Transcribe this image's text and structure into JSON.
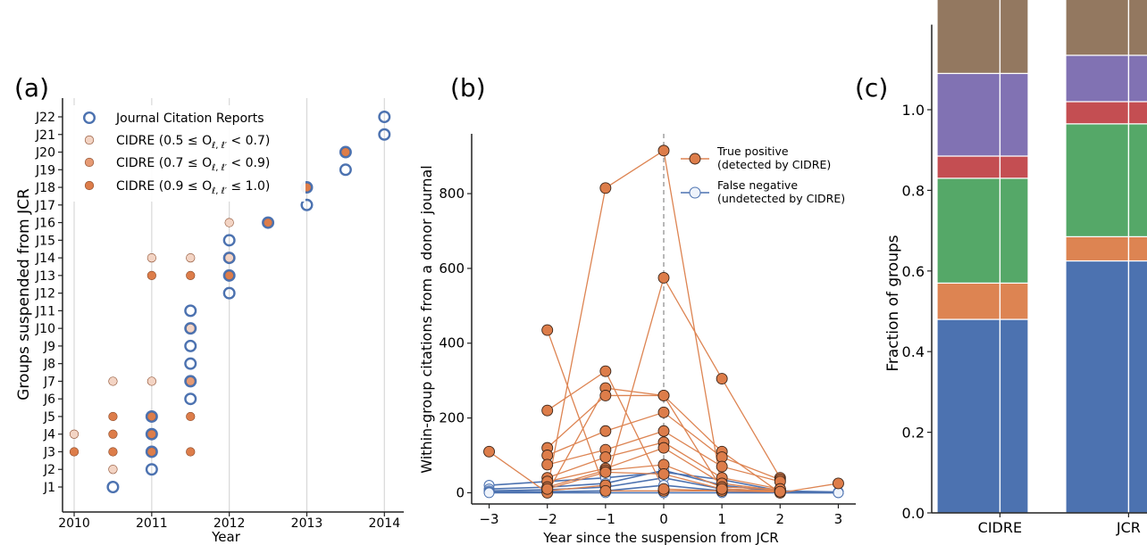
{
  "chart_data": [
    {
      "panel": "(a)",
      "type": "scatter",
      "xlabel": "Year",
      "ylabel": "Groups suspended from JCR",
      "xlim": [
        2009.85,
        2014.25
      ],
      "xticks": [
        2010,
        2011,
        2012,
        2013,
        2014
      ],
      "xtick_labels": [
        "2010",
        "2011",
        "2012",
        "2013",
        "2014"
      ],
      "categories": [
        "J1",
        "J2",
        "J3",
        "J4",
        "J5",
        "J6",
        "J7",
        "J8",
        "J9",
        "J10",
        "J11",
        "J12",
        "J13",
        "J14",
        "J15",
        "J16",
        "J17",
        "J18",
        "J19",
        "J20",
        "J21",
        "J22"
      ],
      "grid": "vertical",
      "legend": {
        "position": "top-left",
        "entries": [
          {
            "label": "Journal Citation Reports",
            "style": "jcr"
          },
          {
            "label": "CIDRE (0.5 ≤ O",
            "sub": "ℓ, ℓ′",
            "tail": " < 0.7)",
            "style": "low"
          },
          {
            "label": "CIDRE (0.7 ≤ O",
            "sub": "ℓ, ℓ′",
            "tail": " < 0.9)",
            "style": "mid"
          },
          {
            "label": "CIDRE (0.9 ≤ O",
            "sub": "ℓ, ℓ′",
            "tail": " ≤ 1.0)",
            "style": "high"
          }
        ]
      },
      "series": [
        {
          "name": "Journal Citation Reports",
          "style": "jcr",
          "points": [
            {
              "x": 2010.5,
              "y": "J1"
            },
            {
              "x": 2011,
              "y": "J2"
            },
            {
              "x": 2011,
              "y": "J3"
            },
            {
              "x": 2011,
              "y": "J4"
            },
            {
              "x": 2011,
              "y": "J5"
            },
            {
              "x": 2011.5,
              "y": "J6"
            },
            {
              "x": 2011.5,
              "y": "J7"
            },
            {
              "x": 2011.5,
              "y": "J8"
            },
            {
              "x": 2011.5,
              "y": "J9"
            },
            {
              "x": 2011.5,
              "y": "J10"
            },
            {
              "x": 2011.5,
              "y": "J11"
            },
            {
              "x": 2012,
              "y": "J12"
            },
            {
              "x": 2012,
              "y": "J13"
            },
            {
              "x": 2012,
              "y": "J14"
            },
            {
              "x": 2012,
              "y": "J15"
            },
            {
              "x": 2012.5,
              "y": "J16"
            },
            {
              "x": 2013,
              "y": "J17"
            },
            {
              "x": 2013,
              "y": "J18"
            },
            {
              "x": 2013.5,
              "y": "J19"
            },
            {
              "x": 2013.5,
              "y": "J20"
            },
            {
              "x": 2014,
              "y": "J21"
            },
            {
              "x": 2014,
              "y": "J22"
            }
          ]
        },
        {
          "name": "CIDRE (0.5 ≤ O < 0.7)",
          "style": "low",
          "points": [
            {
              "x": 2010.5,
              "y": "J2"
            },
            {
              "x": 2010,
              "y": "J4"
            },
            {
              "x": 2010.5,
              "y": "J7"
            },
            {
              "x": 2011,
              "y": "J7"
            },
            {
              "x": 2011.5,
              "y": "J10"
            },
            {
              "x": 2011,
              "y": "J14"
            },
            {
              "x": 2011.5,
              "y": "J14"
            },
            {
              "x": 2012,
              "y": "J14"
            },
            {
              "x": 2012,
              "y": "J16"
            }
          ]
        },
        {
          "name": "CIDRE (0.7 ≤ O < 0.9)",
          "style": "mid",
          "points": [
            {
              "x": 2011.5,
              "y": "J7"
            }
          ]
        },
        {
          "name": "CIDRE (0.9 ≤ O ≤ 1.0)",
          "style": "high",
          "points": [
            {
              "x": 2010,
              "y": "J3"
            },
            {
              "x": 2010.5,
              "y": "J3"
            },
            {
              "x": 2011,
              "y": "J3"
            },
            {
              "x": 2011.5,
              "y": "J3"
            },
            {
              "x": 2010.5,
              "y": "J4"
            },
            {
              "x": 2011,
              "y": "J4"
            },
            {
              "x": 2010.5,
              "y": "J5"
            },
            {
              "x": 2011,
              "y": "J5"
            },
            {
              "x": 2011.5,
              "y": "J5"
            },
            {
              "x": 2011,
              "y": "J13"
            },
            {
              "x": 2011.5,
              "y": "J13"
            },
            {
              "x": 2012,
              "y": "J13"
            },
            {
              "x": 2012.5,
              "y": "J16"
            },
            {
              "x": 2013,
              "y": "J18"
            },
            {
              "x": 2013.5,
              "y": "J20"
            }
          ]
        }
      ]
    },
    {
      "panel": "(b)",
      "type": "line",
      "xlabel": "Year since the suspension from JCR",
      "ylabel": "Within-group citations from a donor journal",
      "xlim": [
        -3.3,
        3.3
      ],
      "ylim": [
        -30,
        960
      ],
      "xticks": [
        -3,
        -2,
        -1,
        0,
        1,
        2,
        3
      ],
      "xtick_labels": [
        "−3",
        "−2",
        "−1",
        "0",
        "1",
        "2",
        "3"
      ],
      "yticks": [
        0,
        200,
        400,
        600,
        800
      ],
      "ytick_labels": [
        "0",
        "200",
        "400",
        "600",
        "800"
      ],
      "vline_x": 0,
      "legend": {
        "position": "top-right",
        "entries": [
          {
            "lines": [
              "True positive",
              "(detected by CIDRE)"
            ],
            "style": "tp"
          },
          {
            "lines": [
              "False negative",
              "(undetected by CIDRE)"
            ],
            "style": "fn"
          }
        ]
      },
      "series": [
        {
          "style": "tp",
          "x": [
            -2,
            -1,
            0,
            1,
            2
          ],
          "y": [
            10,
            815,
            915,
            10,
            5
          ]
        },
        {
          "style": "tp",
          "x": [
            -2,
            -1,
            0,
            1,
            2
          ],
          "y": [
            5,
            20,
            575,
            305,
            40
          ]
        },
        {
          "style": "tp",
          "x": [
            -2,
            -1,
            0,
            1,
            2
          ],
          "y": [
            435,
            5,
            5,
            5,
            3
          ]
        },
        {
          "style": "tp",
          "x": [
            -2,
            -1,
            0,
            1,
            2
          ],
          "y": [
            220,
            325,
            10,
            5,
            2
          ]
        },
        {
          "style": "tp",
          "x": [
            -3,
            -2,
            -1,
            0,
            1,
            2,
            3
          ],
          "y": [
            110,
            0,
            280,
            260,
            110,
            0,
            25
          ]
        },
        {
          "style": "tp",
          "x": [
            -2,
            -1,
            0,
            1,
            2
          ],
          "y": [
            120,
            260,
            260,
            10,
            5
          ]
        },
        {
          "style": "tp",
          "x": [
            -2,
            -1,
            0,
            1,
            2
          ],
          "y": [
            100,
            165,
            215,
            95,
            35
          ]
        },
        {
          "style": "tp",
          "x": [
            -2,
            -1,
            0,
            1,
            2
          ],
          "y": [
            75,
            115,
            165,
            70,
            30
          ]
        },
        {
          "style": "tp",
          "x": [
            -2,
            -1,
            0,
            1,
            2
          ],
          "y": [
            40,
            95,
            135,
            40,
            10
          ]
        },
        {
          "style": "tp",
          "x": [
            -2,
            -1,
            0,
            1,
            2
          ],
          "y": [
            30,
            65,
            120,
            25,
            5
          ]
        },
        {
          "style": "tp",
          "x": [
            -2,
            -1,
            0,
            1,
            2
          ],
          "y": [
            15,
            60,
            75,
            15,
            10
          ]
        },
        {
          "style": "tp",
          "x": [
            -2,
            -1,
            0,
            1,
            2
          ],
          "y": [
            10,
            55,
            50,
            10,
            3
          ]
        },
        {
          "style": "fn",
          "x": [
            -3,
            -2,
            -1,
            0,
            1,
            2,
            3
          ],
          "y": [
            20,
            30,
            40,
            55,
            35,
            5,
            2
          ]
        },
        {
          "style": "fn",
          "x": [
            -3,
            -2,
            -1,
            0,
            1,
            2,
            3
          ],
          "y": [
            10,
            15,
            25,
            60,
            20,
            3,
            1
          ]
        },
        {
          "style": "fn",
          "x": [
            -3,
            -2,
            -1,
            0,
            1,
            2,
            3
          ],
          "y": [
            5,
            8,
            15,
            40,
            10,
            2,
            1
          ]
        },
        {
          "style": "fn",
          "x": [
            -3,
            -2,
            -1,
            0,
            1,
            2,
            3
          ],
          "y": [
            2,
            3,
            5,
            20,
            5,
            0,
            0
          ]
        },
        {
          "style": "fn",
          "x": [
            -3,
            -2,
            -1,
            0,
            1,
            2,
            3
          ],
          "y": [
            0,
            0,
            0,
            0,
            0,
            0,
            0
          ]
        }
      ]
    },
    {
      "panel": "(c)",
      "type": "bar",
      "stacked": true,
      "ylabel": "Fraction of groups",
      "ylim": [
        0,
        1.2
      ],
      "yticks": [
        0,
        0.2,
        0.4,
        0.6,
        0.8,
        1.0
      ],
      "ytick_labels": [
        "0.0",
        "0.2",
        "0.4",
        "0.6",
        "0.8",
        "1.0"
      ],
      "categories": [
        "CIDRE",
        "JCR"
      ],
      "series": [
        {
          "color": "#4c72b0",
          "values": [
            0.48,
            0.625
          ]
        },
        {
          "color": "#dd8452",
          "values": [
            0.09,
            0.06
          ]
        },
        {
          "color": "#55a868",
          "values": [
            0.26,
            0.28
          ]
        },
        {
          "color": "#c44e52",
          "values": [
            0.055,
            0.055
          ]
        },
        {
          "color": "#8172b3",
          "values": [
            0.205,
            0.115
          ]
        },
        {
          "color": "#937860",
          "values": [
            0.185,
            0.145
          ]
        }
      ]
    }
  ],
  "colors": {
    "jcr_ring": "#4c72b0",
    "low": "#f3d4c4",
    "mid": "#e69a74",
    "high": "#dd7d4a",
    "tp_line": "#dd8452",
    "tp_point": "#dd7d4a",
    "fn_line": "#4c72b0",
    "fn_point": "#eef3fb",
    "grid": "#d8d8d8"
  }
}
